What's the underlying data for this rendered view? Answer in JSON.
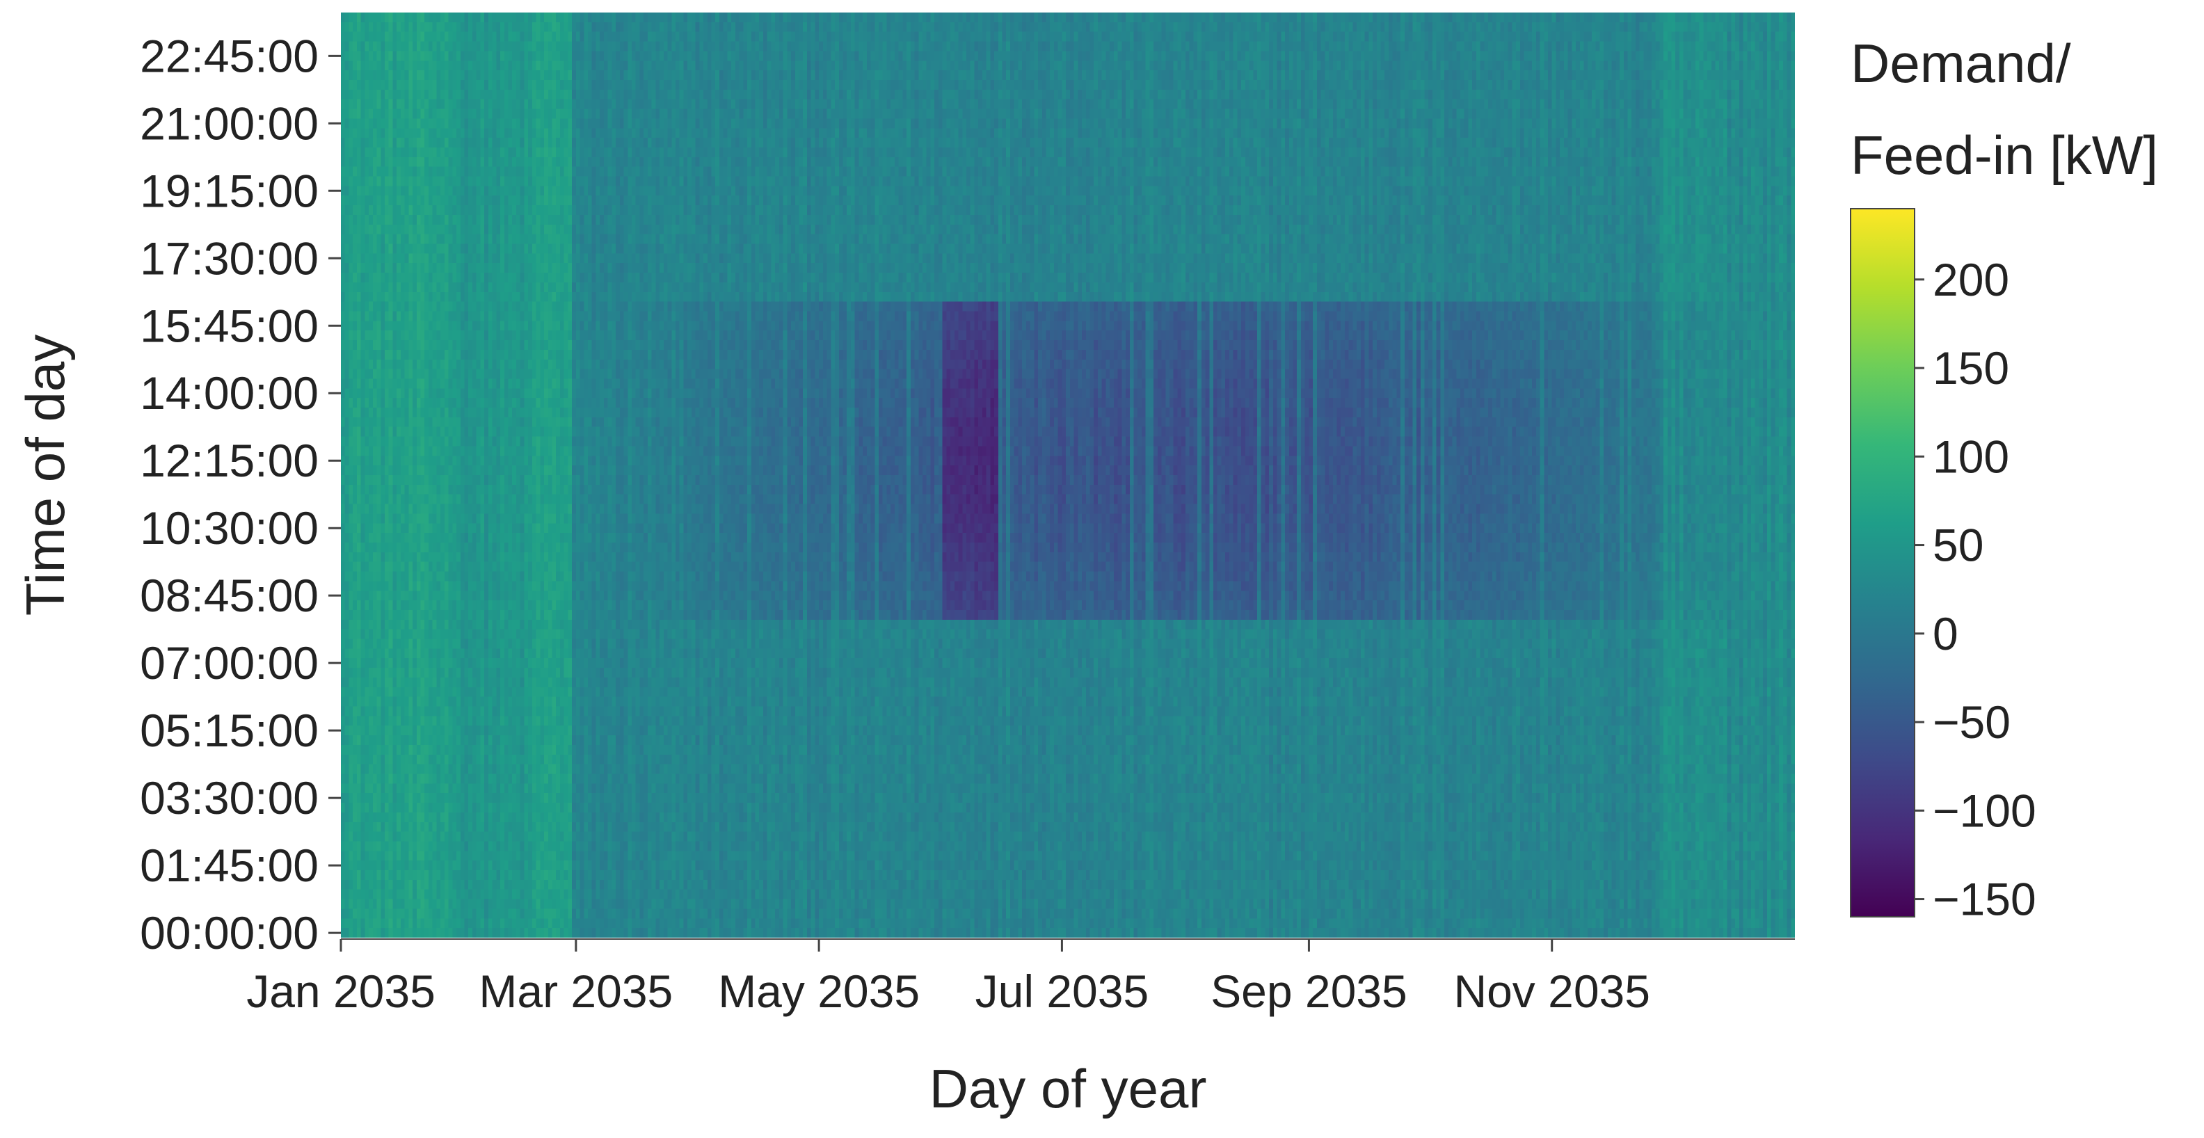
{
  "chart_data": {
    "type": "heatmap",
    "title": "",
    "xlabel": "Day of year",
    "ylabel": "Time of day",
    "x_tick_labels": [
      "Jan 2035",
      "Mar 2035",
      "May 2035",
      "Jul 2035",
      "Sep 2035",
      "Nov 2035"
    ],
    "x_tick_dates": [
      "2035-01-01",
      "2035-03-01",
      "2035-05-01",
      "2035-07-01",
      "2035-09-01",
      "2035-11-01"
    ],
    "x_range": [
      "2035-01-01",
      "2035-12-31"
    ],
    "y_tick_labels": [
      "00:00:00",
      "01:45:00",
      "03:30:00",
      "05:15:00",
      "07:00:00",
      "08:45:00",
      "10:30:00",
      "12:15:00",
      "14:00:00",
      "15:45:00",
      "17:30:00",
      "19:15:00",
      "21:00:00",
      "22:45:00"
    ],
    "y_range": [
      "00:00:00",
      "23:45:00"
    ],
    "y_resolution": "15 min",
    "colorbar": {
      "title_lines": [
        "Demand/",
        "Feed-in [kW]"
      ],
      "ticks": [
        "−150",
        "−100",
        "−50",
        "0",
        "50",
        "100",
        "150",
        "200"
      ],
      "tick_values": [
        -150,
        -100,
        -50,
        0,
        50,
        100,
        150,
        200
      ],
      "range": [
        -160,
        240
      ],
      "colorscale": "viridis",
      "stops": [
        "#440154",
        "#482878",
        "#3e4a89",
        "#31688e",
        "#26828e",
        "#1f9e89",
        "#35b779",
        "#6ece58",
        "#b5de2b",
        "#fde725"
      ]
    },
    "pattern": {
      "winter_level_kw": 60,
      "typical_level_kw": 20,
      "solar_feed_in_window": [
        "08:00:00",
        "16:30:00"
      ],
      "deepest_feed_in_kw": -110,
      "deepest_feed_in_period": [
        "2035-06-01",
        "2035-06-15"
      ]
    },
    "grid": false,
    "legend": "right"
  }
}
